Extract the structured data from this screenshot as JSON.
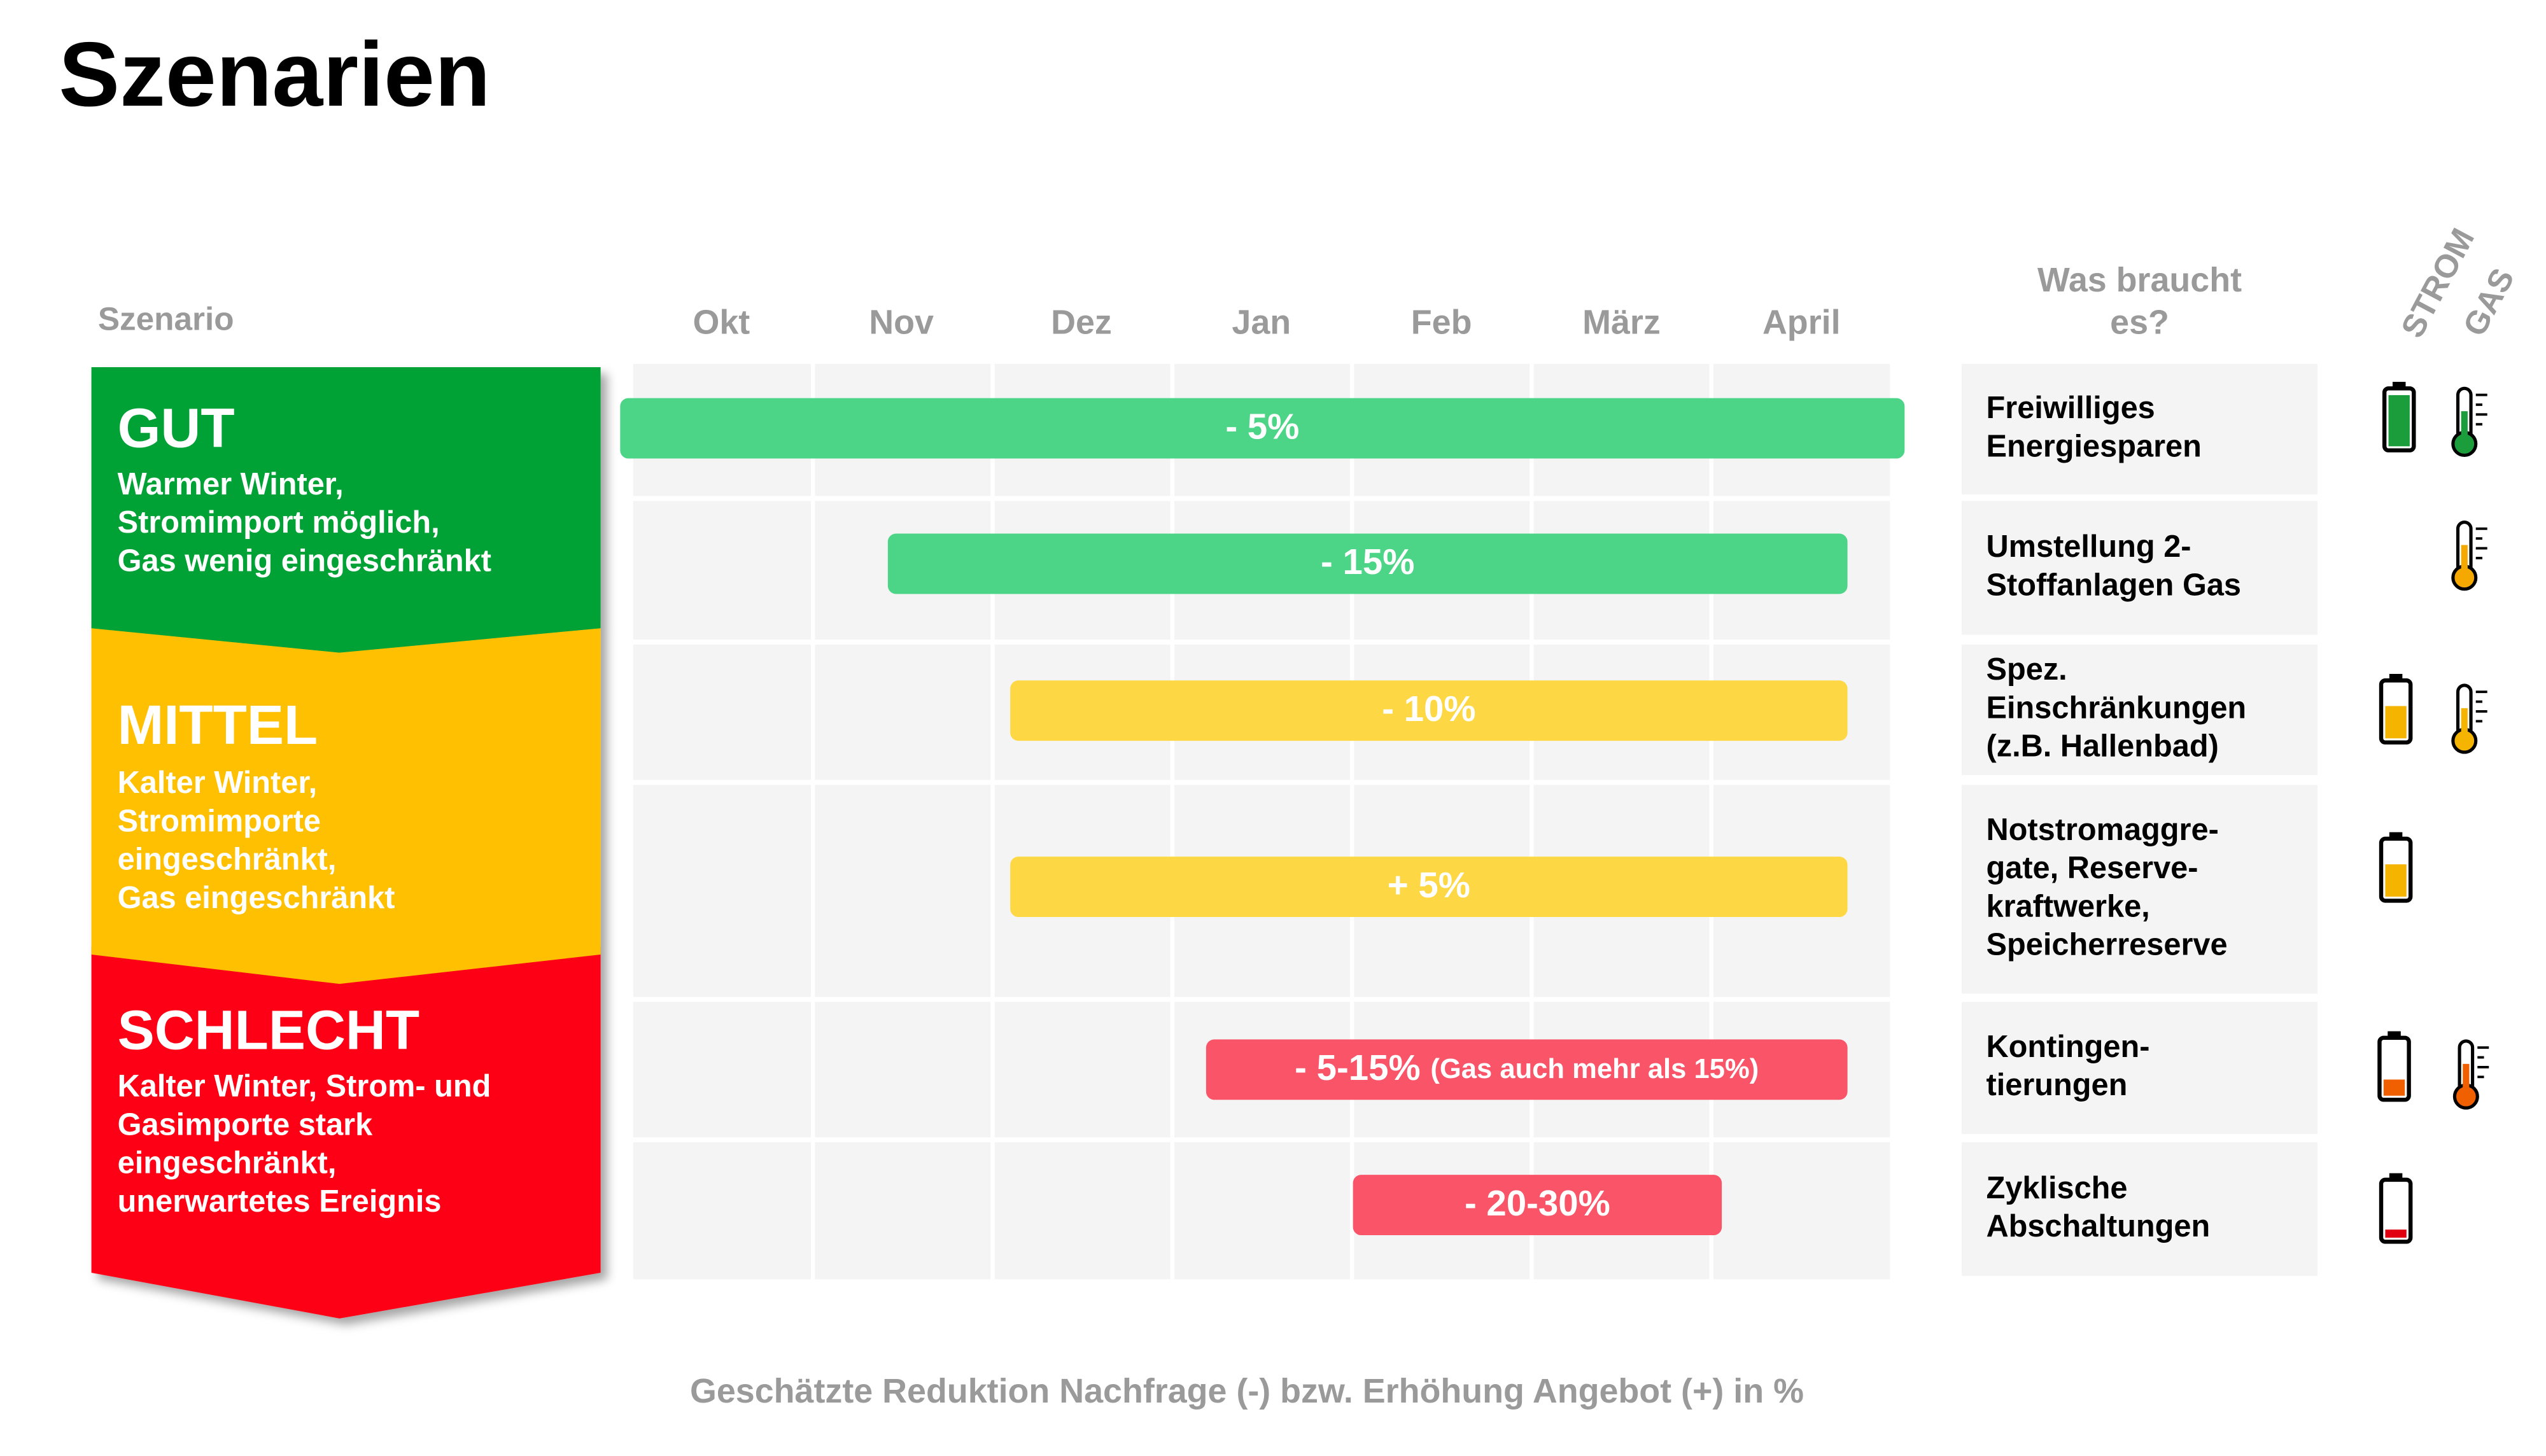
{
  "title": "Szenarien",
  "header": {
    "scenario": "Szenario",
    "months": [
      "Okt",
      "Nov",
      "Dez",
      "Jan",
      "Feb",
      "März",
      "April"
    ],
    "needs": [
      "Was braucht",
      "es?"
    ],
    "strom": "STROM",
    "gas": "GAS"
  },
  "scenarios": [
    {
      "name": "GUT",
      "lines": [
        "Warmer Winter,",
        "Stromimport möglich,",
        "Gas wenig eingeschränkt"
      ]
    },
    {
      "name": "MITTEL",
      "lines": [
        "Kalter Winter,",
        "Stromimporte",
        "eingeschränkt,",
        "Gas eingeschränkt"
      ]
    },
    {
      "name": "SCHLECHT",
      "lines": [
        "Kalter Winter, Strom- und",
        "Gasimporte stark",
        "eingeschränkt,",
        "unerwartetes Ereignis"
      ]
    }
  ],
  "rows": [
    {
      "bar": "- 5%",
      "needs": [
        "Freiwilliges",
        "Energiesparen"
      ]
    },
    {
      "bar": "- 15%",
      "needs": [
        "Umstellung 2-",
        "Stoffanlagen Gas"
      ]
    },
    {
      "bar": "- 10%",
      "needs": [
        "Spez.",
        "Einschränkungen",
        "(z.B. Hallenbad)"
      ]
    },
    {
      "bar": "+ 5%",
      "needs": [
        "Notstromaggre-",
        "gate, Reserve-",
        "kraftwerke,",
        "Speicherreserve"
      ]
    },
    {
      "bar": "- 5-15%",
      "note": "(Gas auch mehr als 15%)",
      "needs": [
        "Kontingen-",
        "tierungen"
      ]
    },
    {
      "bar": "- 20-30%",
      "needs": [
        "Zyklische",
        "Abschaltungen"
      ]
    }
  ],
  "footer": "Geschätzte Reduktion Nachfrage (-) bzw. Erhöhung Angebot (+) in %"
}
